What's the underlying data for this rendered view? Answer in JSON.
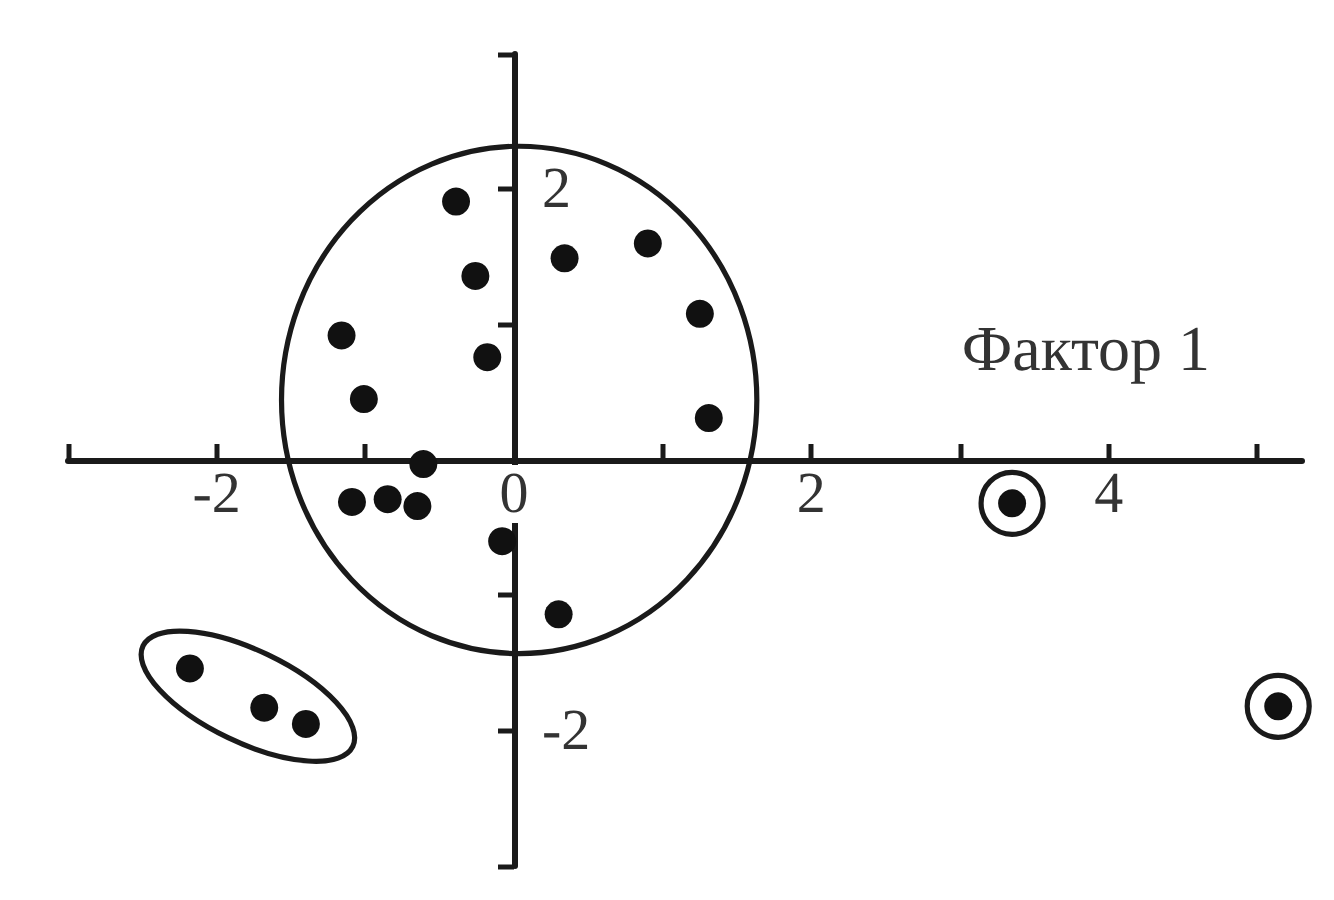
{
  "chart_data": {
    "type": "scatter",
    "xlabel": "Фактор 1",
    "series": [
      {
        "color": "#111111",
        "x": [
          -1.16,
          -1.09,
          -1.01,
          -0.85,
          -0.65,
          -0.61,
          -0.39,
          -0.26,
          -0.18,
          -0.08,
          0.3,
          0.34,
          0.9,
          1.25,
          1.31
        ],
        "values": [
          0.92,
          -0.31,
          0.45,
          -0.29,
          -0.34,
          -0.03,
          1.91,
          1.36,
          0.76,
          -0.6,
          -1.14,
          1.49,
          1.6,
          1.08,
          0.31
        ]
      },
      {
        "color": "#111111",
        "x": [
          -2.18,
          -1.68,
          -1.4
        ],
        "values": [
          -1.54,
          -1.83,
          -1.95
        ]
      },
      {
        "color": "#111111",
        "x": [
          3.35,
          5.14
        ],
        "values": [
          -0.32,
          -1.82
        ]
      }
    ],
    "xlim": [
      -3,
      5.3
    ],
    "ylim": [
      -3,
      3
    ],
    "xticks": [
      {
        "value": -3,
        "label": null
      },
      -2,
      {
        "value": -1,
        "label": null
      },
      0,
      {
        "value": 1,
        "label": null
      },
      2,
      {
        "value": 3,
        "label": null
      },
      4,
      {
        "value": 5,
        "label": null
      }
    ],
    "yticks": [
      {
        "value": -3,
        "label": null
      },
      -2,
      {
        "value": -1,
        "label": null
      },
      {
        "value": 1,
        "label": null
      },
      2,
      {
        "value": 3,
        "label": null
      }
    ],
    "marker": "circle"
  }
}
